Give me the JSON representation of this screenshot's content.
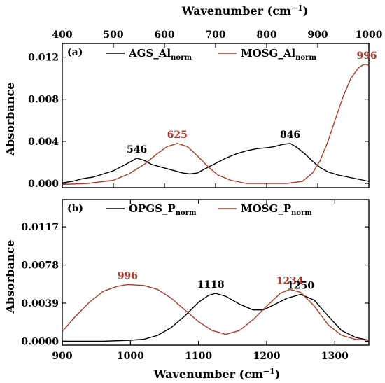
{
  "chart_data": [
    {
      "panel_label": "(a)",
      "type": "line",
      "top_axis": {
        "label": "Wavenumber (cm",
        "label_sup": "−1",
        "label_end": ")",
        "range": [
          400,
          1000
        ],
        "ticks": [
          400,
          500,
          600,
          700,
          800,
          900,
          1000
        ],
        "tick_labels": [
          "400",
          "500",
          "600",
          "700",
          "800",
          "900",
          "1000"
        ]
      },
      "ylabel": "Absorbance",
      "ylim": [
        -0.0004,
        0.0133
      ],
      "yticks": [
        0.0,
        0.004,
        0.008,
        0.012
      ],
      "ytick_labels": [
        "0.000",
        "0.004",
        "0.008",
        "0.012"
      ],
      "legend_position": "top",
      "series": [
        {
          "name": "AGS_Al",
          "name_sub": "norm",
          "color": "#000000",
          "points": [
            [
              400,
              5e-05
            ],
            [
              420,
              0.0002
            ],
            [
              440,
              0.00045
            ],
            [
              460,
              0.0006
            ],
            [
              480,
              0.0009
            ],
            [
              500,
              0.0012
            ],
            [
              520,
              0.0017
            ],
            [
              535,
              0.0021
            ],
            [
              546,
              0.0024
            ],
            [
              560,
              0.0022
            ],
            [
              575,
              0.0018
            ],
            [
              590,
              0.0016
            ],
            [
              605,
              0.0014
            ],
            [
              620,
              0.0012
            ],
            [
              635,
              0.001
            ],
            [
              650,
              0.0009
            ],
            [
              665,
              0.001
            ],
            [
              680,
              0.0014
            ],
            [
              700,
              0.0019
            ],
            [
              720,
              0.0024
            ],
            [
              740,
              0.0028
            ],
            [
              760,
              0.0031
            ],
            [
              780,
              0.0033
            ],
            [
              800,
              0.0034
            ],
            [
              815,
              0.0035
            ],
            [
              830,
              0.0037
            ],
            [
              846,
              0.0038
            ],
            [
              860,
              0.0034
            ],
            [
              875,
              0.0028
            ],
            [
              890,
              0.0021
            ],
            [
              905,
              0.0015
            ],
            [
              920,
              0.0011
            ],
            [
              940,
              0.0008
            ],
            [
              960,
              0.0006
            ],
            [
              980,
              0.0004
            ],
            [
              1000,
              0.0002
            ]
          ]
        },
        {
          "name": "MOSG_Al",
          "name_sub": "norm",
          "color": "#b03a2e",
          "points": [
            [
              400,
              -0.0001
            ],
            [
              450,
              0.0
            ],
            [
              500,
              0.0003
            ],
            [
              530,
              0.0009
            ],
            [
              560,
              0.0018
            ],
            [
              585,
              0.0028
            ],
            [
              605,
              0.0035
            ],
            [
              625,
              0.0038
            ],
            [
              645,
              0.0035
            ],
            [
              665,
              0.0026
            ],
            [
              685,
              0.0016
            ],
            [
              705,
              0.0008
            ],
            [
              730,
              0.0003
            ],
            [
              760,
              0.0
            ],
            [
              800,
              0.0
            ],
            [
              840,
              0.0
            ],
            [
              870,
              0.0002
            ],
            [
              890,
              0.001
            ],
            [
              905,
              0.0022
            ],
            [
              920,
              0.004
            ],
            [
              935,
              0.0062
            ],
            [
              950,
              0.0083
            ],
            [
              965,
              0.01
            ],
            [
              980,
              0.011
            ],
            [
              990,
              0.0113
            ],
            [
              996,
              0.0113
            ],
            [
              1000,
              0.0112
            ]
          ]
        }
      ],
      "annotations": [
        {
          "text": "546",
          "x": 546,
          "y": 0.0024,
          "color": "#000000"
        },
        {
          "text": "625",
          "x": 625,
          "y": 0.0038,
          "color": "#b03a2e"
        },
        {
          "text": "846",
          "x": 846,
          "y": 0.0038,
          "color": "#000000"
        },
        {
          "text": "996",
          "x": 996,
          "y": 0.0113,
          "color": "#b03a2e"
        }
      ]
    },
    {
      "panel_label": "(b)",
      "type": "line",
      "xlabel": "Wavenumber (cm",
      "xlabel_sup": "−1",
      "xlabel_end": ")",
      "xlim": [
        900,
        1350
      ],
      "xticks": [
        900,
        1000,
        1100,
        1200,
        1300
      ],
      "xtick_labels": [
        "900",
        "1000",
        "1100",
        "1200",
        "1300"
      ],
      "ylabel": "Absorbance",
      "ylim": [
        -0.0004,
        0.0145
      ],
      "yticks": [
        0.0,
        0.0039,
        0.0078,
        0.0117
      ],
      "ytick_labels": [
        "0.0000",
        "0.0039",
        "0.0078",
        "0.0117"
      ],
      "legend_position": "top",
      "series": [
        {
          "name": "OPGS_P",
          "name_sub": "norm",
          "color": "#000000",
          "points": [
            [
              900,
              0.0
            ],
            [
              960,
              0.0
            ],
            [
              1000,
              0.0001
            ],
            [
              1020,
              0.0002
            ],
            [
              1040,
              0.0006
            ],
            [
              1060,
              0.0014
            ],
            [
              1080,
              0.0026
            ],
            [
              1100,
              0.004
            ],
            [
              1115,
              0.0047
            ],
            [
              1125,
              0.0049
            ],
            [
              1140,
              0.0046
            ],
            [
              1160,
              0.0038
            ],
            [
              1180,
              0.0032
            ],
            [
              1195,
              0.0032
            ],
            [
              1210,
              0.0037
            ],
            [
              1230,
              0.0044
            ],
            [
              1250,
              0.0048
            ],
            [
              1270,
              0.0042
            ],
            [
              1290,
              0.0026
            ],
            [
              1310,
              0.0011
            ],
            [
              1330,
              0.0004
            ],
            [
              1350,
              0.0001
            ]
          ]
        },
        {
          "name": "MOSG_P",
          "name_sub": "norm",
          "color": "#b03a2e",
          "points": [
            [
              900,
              0.001
            ],
            [
              920,
              0.0026
            ],
            [
              940,
              0.004
            ],
            [
              960,
              0.0051
            ],
            [
              980,
              0.0056
            ],
            [
              996,
              0.0058
            ],
            [
              1020,
              0.0057
            ],
            [
              1040,
              0.0053
            ],
            [
              1060,
              0.0044
            ],
            [
              1080,
              0.0032
            ],
            [
              1100,
              0.002
            ],
            [
              1120,
              0.0011
            ],
            [
              1140,
              0.0007
            ],
            [
              1160,
              0.0011
            ],
            [
              1180,
              0.0022
            ],
            [
              1200,
              0.0036
            ],
            [
              1220,
              0.0049
            ],
            [
              1234,
              0.0053
            ],
            [
              1250,
              0.005
            ],
            [
              1270,
              0.0036
            ],
            [
              1290,
              0.0017
            ],
            [
              1310,
              0.0006
            ],
            [
              1330,
              0.0002
            ],
            [
              1350,
              0.0001
            ]
          ]
        }
      ],
      "annotations": [
        {
          "text": "996",
          "x": 996,
          "y": 0.0058,
          "color": "#b03a2e"
        },
        {
          "text": "1118",
          "x": 1118,
          "y": 0.0049,
          "color": "#000000"
        },
        {
          "text": "1234",
          "x": 1234,
          "y": 0.0053,
          "color": "#b03a2e"
        },
        {
          "text": "1250",
          "x": 1250,
          "y": 0.0048,
          "color": "#000000"
        }
      ]
    }
  ]
}
